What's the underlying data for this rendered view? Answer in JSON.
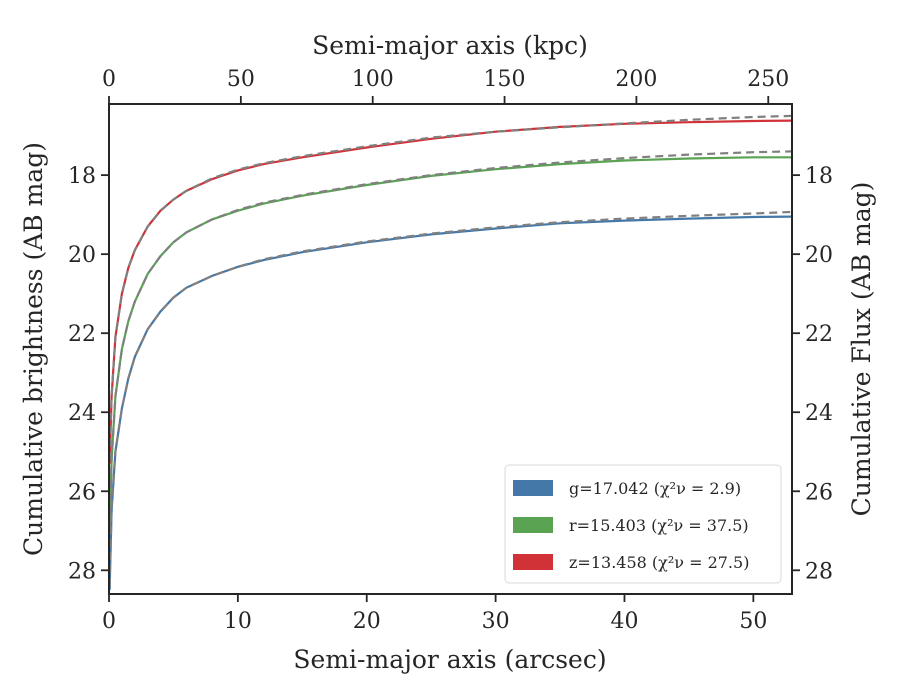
{
  "chart_data": {
    "type": "line",
    "xlabel": "Semi-major axis (arcsec)",
    "x2label": "Semi-major axis (kpc)",
    "ylabel": "Cumulative brightness (AB mag)",
    "y2label": "Cumulative Flux (AB mag)",
    "xlim": [
      0,
      53
    ],
    "x2lim": [
      0,
      259
    ],
    "ylim": [
      28.6,
      16.2
    ],
    "y_inverted": true,
    "x_ticks": [
      0,
      10,
      20,
      30,
      40,
      50
    ],
    "x2_ticks": [
      0,
      50,
      100,
      150,
      200,
      250
    ],
    "y_ticks": [
      18,
      20,
      22,
      24,
      26,
      28
    ],
    "legend_position": "lower-right",
    "series": [
      {
        "name": "g=17.042",
        "fit": "χ²ν = 2.9",
        "color": "#4478a8",
        "x": [
          0.05,
          0.2,
          0.5,
          1,
          1.5,
          2,
          3,
          4,
          5,
          6,
          8,
          10,
          12,
          15,
          20,
          25,
          30,
          35,
          40,
          45,
          50,
          53
        ],
        "y": [
          28.5,
          26.5,
          25.0,
          23.9,
          23.15,
          22.6,
          21.9,
          21.45,
          21.1,
          20.85,
          20.55,
          20.32,
          20.15,
          19.95,
          19.7,
          19.5,
          19.35,
          19.22,
          19.15,
          19.1,
          19.06,
          19.05
        ]
      },
      {
        "name": "r=15.403",
        "fit": "χ²ν = 37.5",
        "color": "#59a353",
        "x": [
          0.05,
          0.2,
          0.5,
          1,
          1.5,
          2,
          3,
          4,
          5,
          6,
          8,
          10,
          12,
          15,
          20,
          25,
          30,
          35,
          40,
          45,
          50,
          53
        ],
        "y": [
          27.0,
          25.2,
          23.6,
          22.4,
          21.7,
          21.2,
          20.5,
          20.05,
          19.7,
          19.45,
          19.12,
          18.9,
          18.72,
          18.52,
          18.25,
          18.02,
          17.85,
          17.72,
          17.63,
          17.58,
          17.55,
          17.55
        ]
      },
      {
        "name": "z=13.458",
        "fit": "χ²ν = 27.5",
        "color": "#d03238",
        "x": [
          0.05,
          0.2,
          0.5,
          1,
          1.5,
          2,
          3,
          4,
          5,
          6,
          8,
          10,
          12,
          15,
          20,
          25,
          30,
          35,
          40,
          45,
          50,
          53
        ],
        "y": [
          25.3,
          23.6,
          22.1,
          21.0,
          20.35,
          19.9,
          19.3,
          18.9,
          18.62,
          18.4,
          18.1,
          17.88,
          17.72,
          17.55,
          17.3,
          17.08,
          16.9,
          16.78,
          16.7,
          16.66,
          16.63,
          16.62
        ]
      }
    ],
    "model_series": [
      {
        "color": "#808080",
        "x": [
          0.05,
          0.2,
          0.5,
          1,
          1.5,
          2,
          3,
          4,
          5,
          6,
          8,
          10,
          12,
          15,
          20,
          25,
          30,
          35,
          40,
          45,
          50,
          53
        ],
        "y": [
          28.4,
          26.4,
          25.0,
          23.9,
          23.15,
          22.6,
          21.9,
          21.45,
          21.1,
          20.85,
          20.55,
          20.32,
          20.13,
          19.93,
          19.68,
          19.48,
          19.32,
          19.19,
          19.1,
          19.03,
          18.97,
          18.93
        ]
      },
      {
        "color": "#808080",
        "x": [
          0.05,
          0.2,
          0.5,
          1,
          1.5,
          2,
          3,
          4,
          5,
          6,
          8,
          10,
          12,
          15,
          20,
          25,
          30,
          35,
          40,
          45,
          50,
          53
        ],
        "y": [
          26.9,
          25.2,
          23.6,
          22.4,
          21.7,
          21.2,
          20.5,
          20.05,
          19.7,
          19.45,
          19.12,
          18.88,
          18.7,
          18.5,
          18.23,
          18.0,
          17.82,
          17.68,
          17.57,
          17.48,
          17.42,
          17.4
        ]
      },
      {
        "color": "#808080",
        "x": [
          0.05,
          0.2,
          0.5,
          1,
          1.5,
          2,
          3,
          4,
          5,
          6,
          8,
          10,
          12,
          15,
          20,
          25,
          30,
          35,
          40,
          45,
          50,
          53
        ],
        "y": [
          25.2,
          23.6,
          22.1,
          21.0,
          20.35,
          19.9,
          19.3,
          18.9,
          18.62,
          18.4,
          18.08,
          17.86,
          17.7,
          17.52,
          17.27,
          17.05,
          16.9,
          16.79,
          16.69,
          16.6,
          16.53,
          16.5
        ]
      }
    ]
  }
}
